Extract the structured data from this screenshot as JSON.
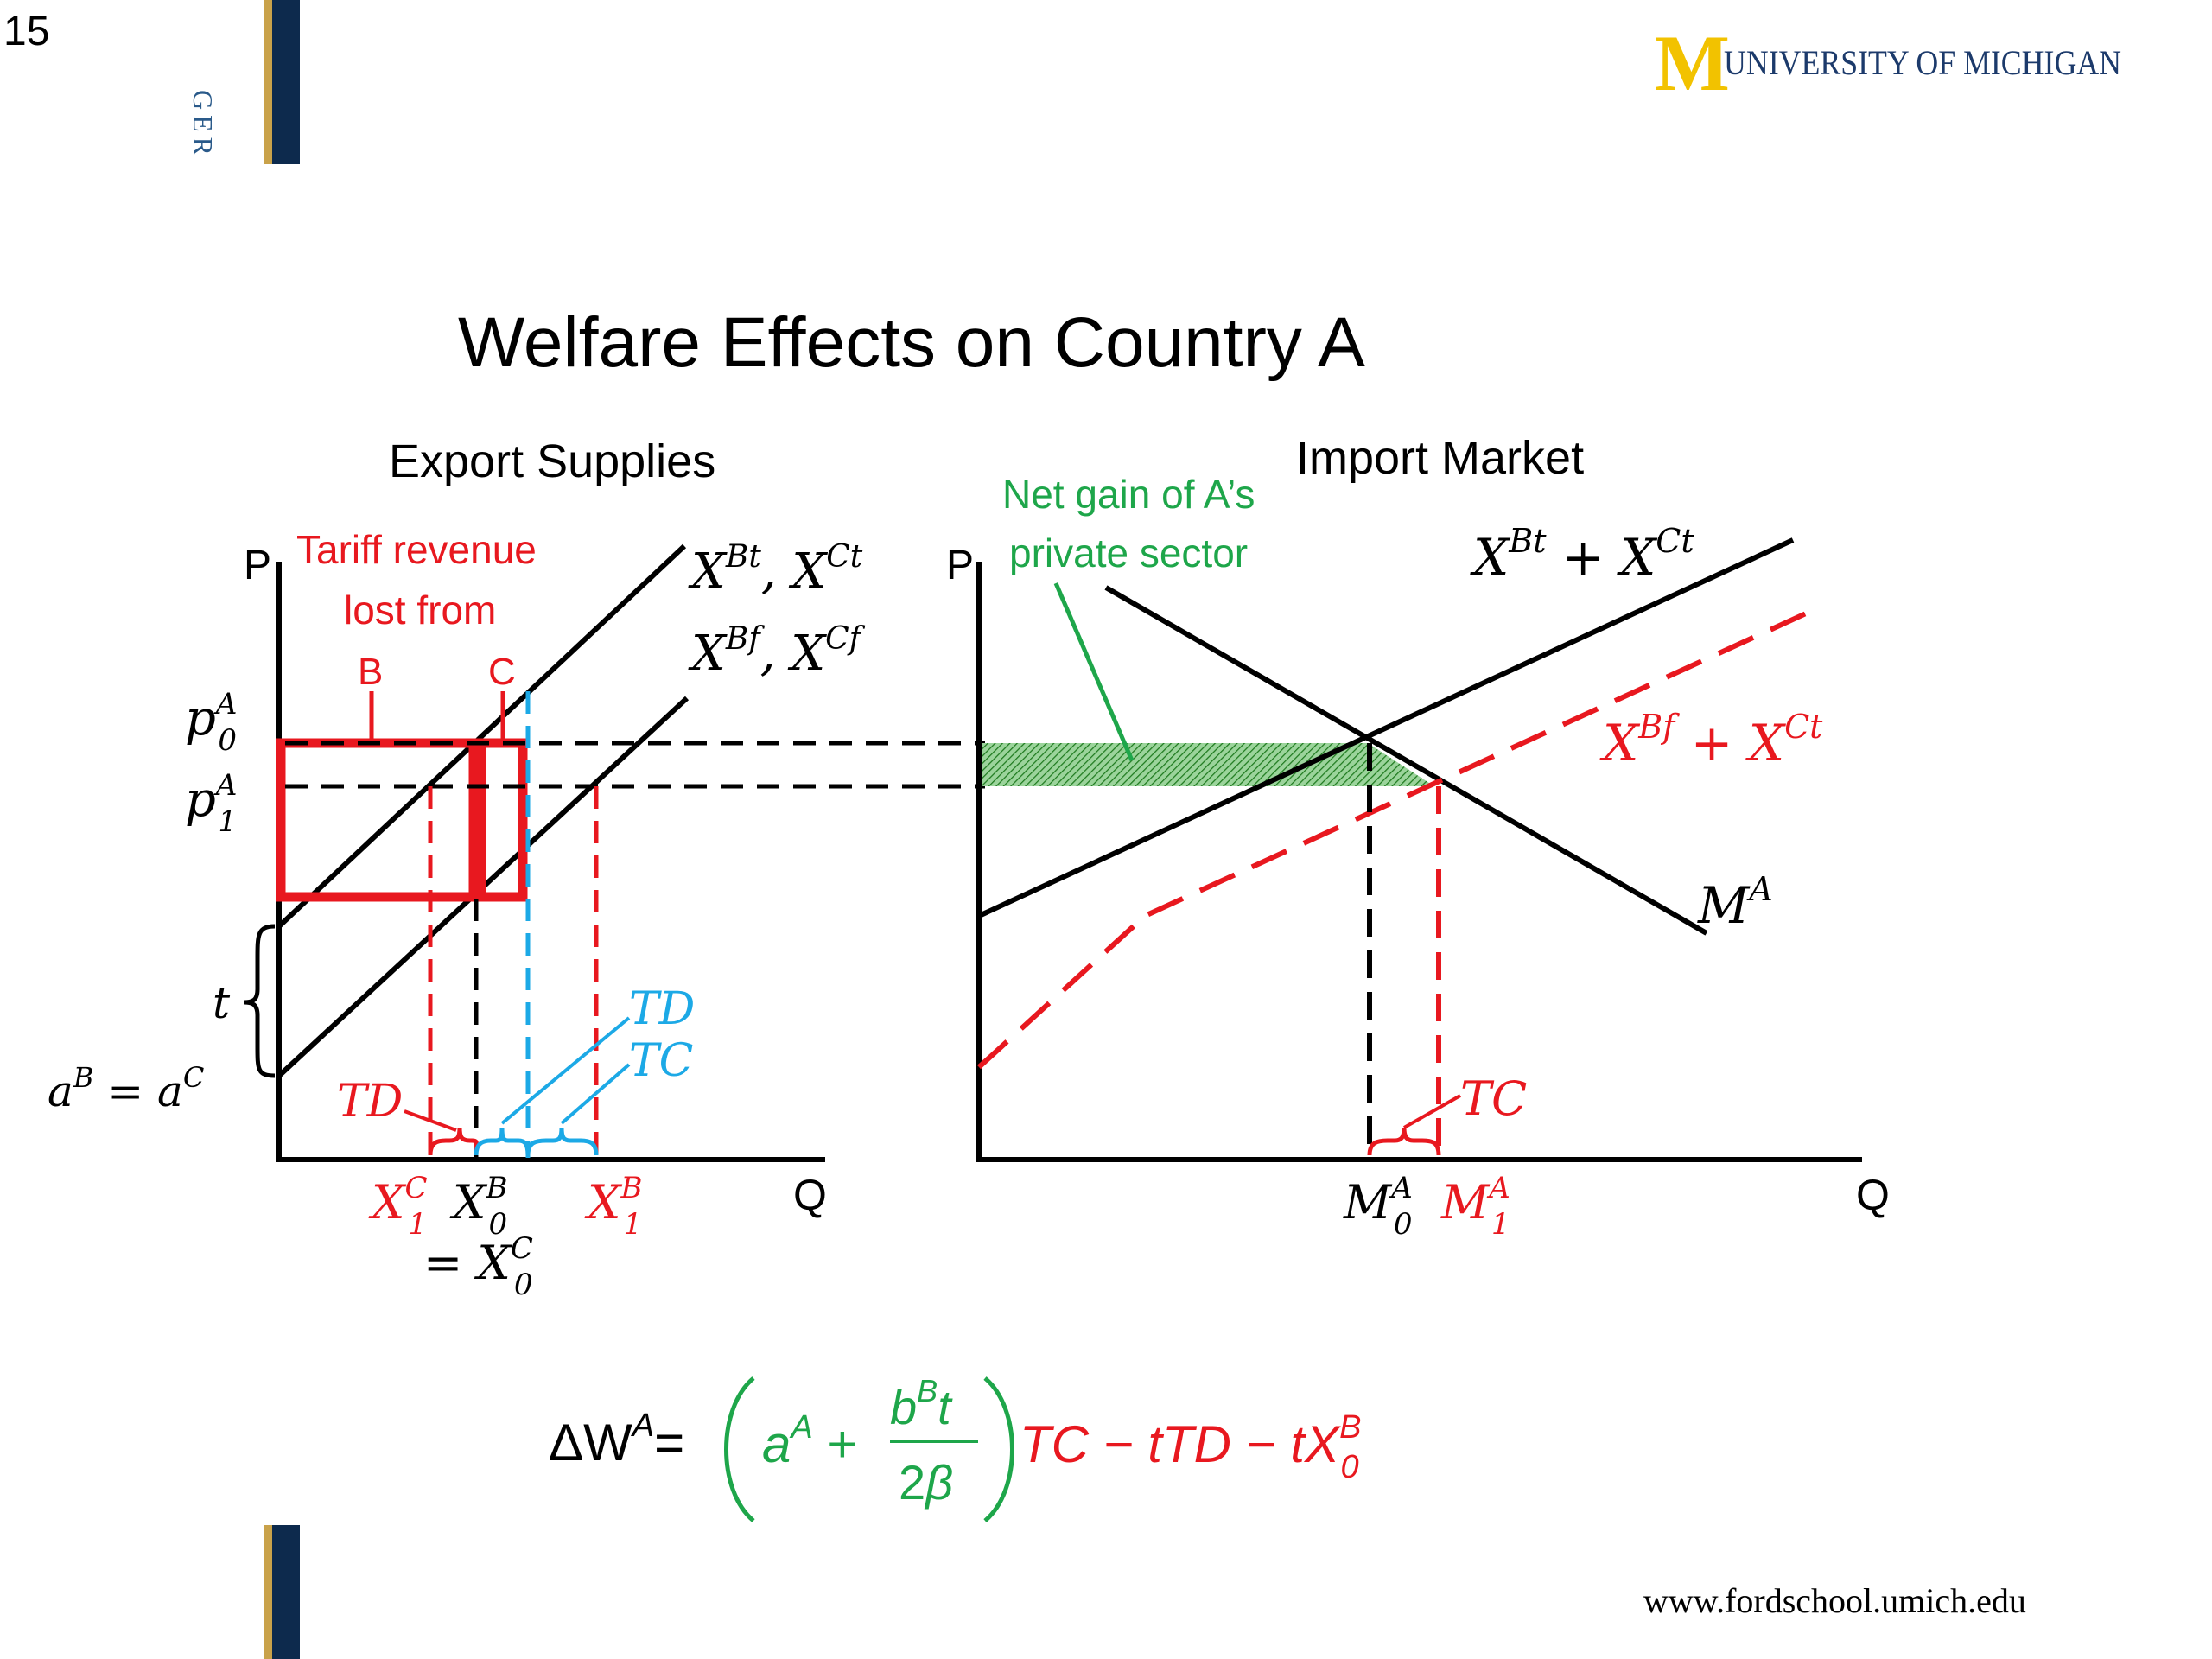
{
  "slide_number": "15",
  "side_label": "GER",
  "logo": {
    "letter": "M",
    "text": "UNIVERSITY OF MICHIGAN"
  },
  "title": "Welfare Effects on Country A",
  "footer_url": "www.fordschool.umich.edu",
  "colors": {
    "red": "#e8181f",
    "blue": "#1ca9e6",
    "green": "#1ea64a",
    "black": "#000000",
    "maize": "#f2c200",
    "navy": "#002d5c"
  },
  "left_panel": {
    "heading": "Export Supplies",
    "p_axis": "P",
    "q_axis": "Q",
    "tariff_label": [
      "Tariff revenue",
      "lost from"
    ],
    "box_labels": [
      "B",
      "C"
    ],
    "curve_labels": {
      "tariff": "X^Bt, X^Ct",
      "free": "X^Bf, X^Cf"
    },
    "price_labels": {
      "p0": "p0A",
      "p1": "p1A"
    },
    "t_label": "t",
    "intercept_label": "aB = aC",
    "td_red": "TD",
    "td_blue": "TD",
    "tc_blue": "TC",
    "x_labels": {
      "x1c": "X1C",
      "x0b": "X0B",
      "eq": "= X0C",
      "x1b": "X1B"
    }
  },
  "right_panel": {
    "heading": "Import Market",
    "p_axis": "P",
    "q_axis": "Q",
    "net_gain_label": [
      "Net gain of A’s",
      "private sector"
    ],
    "curve_labels": {
      "supply_t": "X^Bt + X^Ct",
      "supply_f": "X^Bf + X^Ct",
      "demand": "M^A"
    },
    "tc_label": "TC",
    "x_labels": {
      "m0": "M0A",
      "m1": "M1A"
    }
  },
  "formula": {
    "lhs": "ΔWA =",
    "green_part": "(aA + bBt / 2β)",
    "red_part": "TC − tTD − tX0B"
  }
}
